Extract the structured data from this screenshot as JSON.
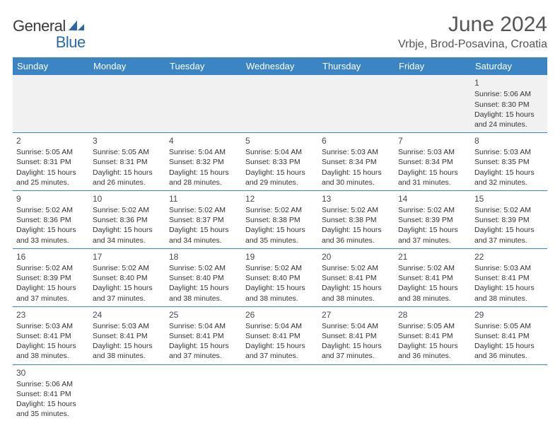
{
  "brand": {
    "part1": "General",
    "part2": "Blue"
  },
  "title": "June 2024",
  "location": "Vrbje, Brod-Posavina, Croatia",
  "colors": {
    "header_bg": "#3b85c5",
    "header_text": "#ffffff",
    "border": "#3b85c5",
    "first_week_bg": "#f1f1f1",
    "text": "#333333",
    "title_text": "#555555"
  },
  "weekdays": [
    "Sunday",
    "Monday",
    "Tuesday",
    "Wednesday",
    "Thursday",
    "Friday",
    "Saturday"
  ],
  "weeks": [
    [
      null,
      null,
      null,
      null,
      null,
      null,
      {
        "n": "1",
        "sr": "Sunrise: 5:06 AM",
        "ss": "Sunset: 8:30 PM",
        "d1": "Daylight: 15 hours",
        "d2": "and 24 minutes."
      }
    ],
    [
      {
        "n": "2",
        "sr": "Sunrise: 5:05 AM",
        "ss": "Sunset: 8:31 PM",
        "d1": "Daylight: 15 hours",
        "d2": "and 25 minutes."
      },
      {
        "n": "3",
        "sr": "Sunrise: 5:05 AM",
        "ss": "Sunset: 8:31 PM",
        "d1": "Daylight: 15 hours",
        "d2": "and 26 minutes."
      },
      {
        "n": "4",
        "sr": "Sunrise: 5:04 AM",
        "ss": "Sunset: 8:32 PM",
        "d1": "Daylight: 15 hours",
        "d2": "and 28 minutes."
      },
      {
        "n": "5",
        "sr": "Sunrise: 5:04 AM",
        "ss": "Sunset: 8:33 PM",
        "d1": "Daylight: 15 hours",
        "d2": "and 29 minutes."
      },
      {
        "n": "6",
        "sr": "Sunrise: 5:03 AM",
        "ss": "Sunset: 8:34 PM",
        "d1": "Daylight: 15 hours",
        "d2": "and 30 minutes."
      },
      {
        "n": "7",
        "sr": "Sunrise: 5:03 AM",
        "ss": "Sunset: 8:34 PM",
        "d1": "Daylight: 15 hours",
        "d2": "and 31 minutes."
      },
      {
        "n": "8",
        "sr": "Sunrise: 5:03 AM",
        "ss": "Sunset: 8:35 PM",
        "d1": "Daylight: 15 hours",
        "d2": "and 32 minutes."
      }
    ],
    [
      {
        "n": "9",
        "sr": "Sunrise: 5:02 AM",
        "ss": "Sunset: 8:36 PM",
        "d1": "Daylight: 15 hours",
        "d2": "and 33 minutes."
      },
      {
        "n": "10",
        "sr": "Sunrise: 5:02 AM",
        "ss": "Sunset: 8:36 PM",
        "d1": "Daylight: 15 hours",
        "d2": "and 34 minutes."
      },
      {
        "n": "11",
        "sr": "Sunrise: 5:02 AM",
        "ss": "Sunset: 8:37 PM",
        "d1": "Daylight: 15 hours",
        "d2": "and 34 minutes."
      },
      {
        "n": "12",
        "sr": "Sunrise: 5:02 AM",
        "ss": "Sunset: 8:38 PM",
        "d1": "Daylight: 15 hours",
        "d2": "and 35 minutes."
      },
      {
        "n": "13",
        "sr": "Sunrise: 5:02 AM",
        "ss": "Sunset: 8:38 PM",
        "d1": "Daylight: 15 hours",
        "d2": "and 36 minutes."
      },
      {
        "n": "14",
        "sr": "Sunrise: 5:02 AM",
        "ss": "Sunset: 8:39 PM",
        "d1": "Daylight: 15 hours",
        "d2": "and 37 minutes."
      },
      {
        "n": "15",
        "sr": "Sunrise: 5:02 AM",
        "ss": "Sunset: 8:39 PM",
        "d1": "Daylight: 15 hours",
        "d2": "and 37 minutes."
      }
    ],
    [
      {
        "n": "16",
        "sr": "Sunrise: 5:02 AM",
        "ss": "Sunset: 8:39 PM",
        "d1": "Daylight: 15 hours",
        "d2": "and 37 minutes."
      },
      {
        "n": "17",
        "sr": "Sunrise: 5:02 AM",
        "ss": "Sunset: 8:40 PM",
        "d1": "Daylight: 15 hours",
        "d2": "and 37 minutes."
      },
      {
        "n": "18",
        "sr": "Sunrise: 5:02 AM",
        "ss": "Sunset: 8:40 PM",
        "d1": "Daylight: 15 hours",
        "d2": "and 38 minutes."
      },
      {
        "n": "19",
        "sr": "Sunrise: 5:02 AM",
        "ss": "Sunset: 8:40 PM",
        "d1": "Daylight: 15 hours",
        "d2": "and 38 minutes."
      },
      {
        "n": "20",
        "sr": "Sunrise: 5:02 AM",
        "ss": "Sunset: 8:41 PM",
        "d1": "Daylight: 15 hours",
        "d2": "and 38 minutes."
      },
      {
        "n": "21",
        "sr": "Sunrise: 5:02 AM",
        "ss": "Sunset: 8:41 PM",
        "d1": "Daylight: 15 hours",
        "d2": "and 38 minutes."
      },
      {
        "n": "22",
        "sr": "Sunrise: 5:03 AM",
        "ss": "Sunset: 8:41 PM",
        "d1": "Daylight: 15 hours",
        "d2": "and 38 minutes."
      }
    ],
    [
      {
        "n": "23",
        "sr": "Sunrise: 5:03 AM",
        "ss": "Sunset: 8:41 PM",
        "d1": "Daylight: 15 hours",
        "d2": "and 38 minutes."
      },
      {
        "n": "24",
        "sr": "Sunrise: 5:03 AM",
        "ss": "Sunset: 8:41 PM",
        "d1": "Daylight: 15 hours",
        "d2": "and 38 minutes."
      },
      {
        "n": "25",
        "sr": "Sunrise: 5:04 AM",
        "ss": "Sunset: 8:41 PM",
        "d1": "Daylight: 15 hours",
        "d2": "and 37 minutes."
      },
      {
        "n": "26",
        "sr": "Sunrise: 5:04 AM",
        "ss": "Sunset: 8:41 PM",
        "d1": "Daylight: 15 hours",
        "d2": "and 37 minutes."
      },
      {
        "n": "27",
        "sr": "Sunrise: 5:04 AM",
        "ss": "Sunset: 8:41 PM",
        "d1": "Daylight: 15 hours",
        "d2": "and 37 minutes."
      },
      {
        "n": "28",
        "sr": "Sunrise: 5:05 AM",
        "ss": "Sunset: 8:41 PM",
        "d1": "Daylight: 15 hours",
        "d2": "and 36 minutes."
      },
      {
        "n": "29",
        "sr": "Sunrise: 5:05 AM",
        "ss": "Sunset: 8:41 PM",
        "d1": "Daylight: 15 hours",
        "d2": "and 36 minutes."
      }
    ],
    [
      {
        "n": "30",
        "sr": "Sunrise: 5:06 AM",
        "ss": "Sunset: 8:41 PM",
        "d1": "Daylight: 15 hours",
        "d2": "and 35 minutes."
      },
      null,
      null,
      null,
      null,
      null,
      null
    ]
  ]
}
